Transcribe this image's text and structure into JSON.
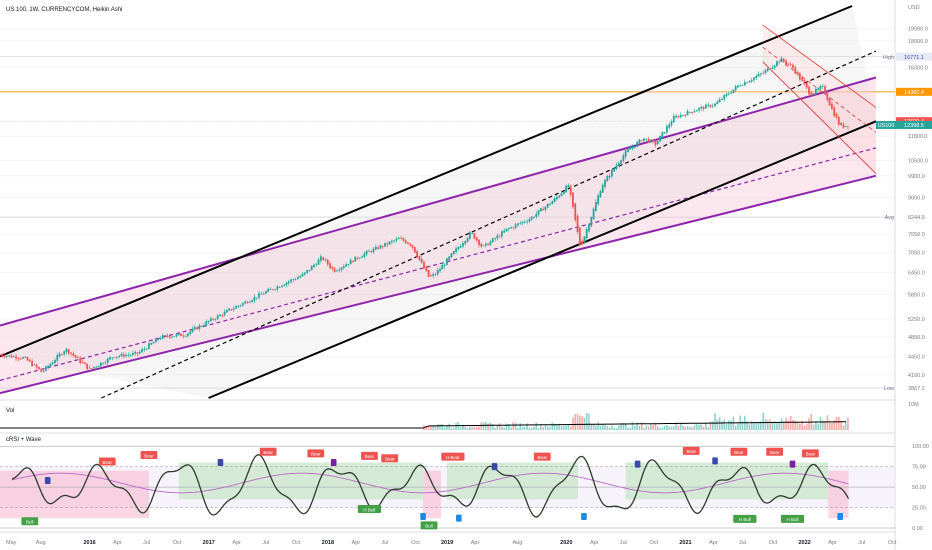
{
  "header": {
    "title": "US 100, 1W, CURRENCYCOM, Heikin Ashi"
  },
  "colors": {
    "purple": "#8e24aa",
    "black": "#000000",
    "red": "#e53935",
    "orange": "#ff9800",
    "up": "#26a69a",
    "down": "#ef5350",
    "green_fill": "#c8e6c9",
    "red_fill": "#f8bbd0"
  },
  "currency": "USD",
  "chart_data": {
    "type": "candlestick",
    "title": "US 100, 1W, CURRENCYCOM, Heikin Ashi",
    "y_scale": "log",
    "ylim": [
      3700,
      21000
    ],
    "price_ticks": [
      "19000.0",
      "18000.0",
      "16000.0",
      "14300.0",
      "12600.0",
      "11800.0",
      "10600.0",
      "9900.0",
      "9000.0",
      "8244.5",
      "7650.0",
      "7050.0",
      "6450.0",
      "5850.0",
      "5250.0",
      "4850.0",
      "4450.0",
      "4100.0",
      "3867.2"
    ],
    "tick_values": [
      19000,
      18000,
      16000,
      14300,
      12600,
      11800,
      10600,
      9900,
      9000,
      8244.5,
      7650,
      7050,
      6450,
      5850,
      5250,
      4850,
      4450,
      4100,
      3867.2
    ],
    "markers": {
      "high": {
        "label": "High",
        "value": "16771.1"
      },
      "avg": {
        "label": "Avg",
        "value": "8244.5"
      },
      "low": {
        "label": "Low",
        "value": "3867.2"
      },
      "orange": {
        "value": "14360.4"
      },
      "red": {
        "value": "12609.4"
      },
      "current": {
        "label": "US100",
        "value": "12398.5"
      }
    },
    "x_labels": [
      "May",
      "Aug",
      "2016",
      "Apr",
      "Jul",
      "Oct",
      "2017",
      "Apr",
      "Jul",
      "Oct",
      "2018",
      "Apr",
      "Jul",
      "Oct",
      "2019",
      "Apr",
      "Aug",
      "2020",
      "Apr",
      "Jul",
      "Oct",
      "2021",
      "Apr",
      "Jul",
      "Oct",
      "2022",
      "Apr",
      "Jul",
      "Oct"
    ],
    "close_path": [
      [
        2015.35,
        4480
      ],
      [
        2015.55,
        4420
      ],
      [
        2015.7,
        4150
      ],
      [
        2015.9,
        4600
      ],
      [
        2016.1,
        4200
      ],
      [
        2016.3,
        4450
      ],
      [
        2016.5,
        4500
      ],
      [
        2016.7,
        4850
      ],
      [
        2016.9,
        4900
      ],
      [
        2017.1,
        5200
      ],
      [
        2017.3,
        5500
      ],
      [
        2017.5,
        5800
      ],
      [
        2017.7,
        6100
      ],
      [
        2017.9,
        6400
      ],
      [
        2018.05,
        6900
      ],
      [
        2018.15,
        6500
      ],
      [
        2018.4,
        7000
      ],
      [
        2018.7,
        7500
      ],
      [
        2018.8,
        7300
      ],
      [
        2018.95,
        6300
      ],
      [
        2019.0,
        6400
      ],
      [
        2019.3,
        7700
      ],
      [
        2019.4,
        7200
      ],
      [
        2019.6,
        7800
      ],
      [
        2019.8,
        8200
      ],
      [
        2020.0,
        8900
      ],
      [
        2020.12,
        9500
      ],
      [
        2020.22,
        7200
      ],
      [
        2020.4,
        9500
      ],
      [
        2020.6,
        11000
      ],
      [
        2020.75,
        11700
      ],
      [
        2020.85,
        11400
      ],
      [
        2021.0,
        12800
      ],
      [
        2021.2,
        13300
      ],
      [
        2021.35,
        13600
      ],
      [
        2021.55,
        14800
      ],
      [
        2021.75,
        15600
      ],
      [
        2021.9,
        16600
      ],
      [
        2022.0,
        16000
      ],
      [
        2022.15,
        14200
      ],
      [
        2022.25,
        14700
      ],
      [
        2022.33,
        13300
      ],
      [
        2022.4,
        12300
      ],
      [
        2022.47,
        12400
      ]
    ],
    "channels": [
      {
        "name": "",
        "color": "#8e24aa",
        "upper": [
          [
            2015.35,
            5100
          ],
          [
            2022.7,
            15300
          ]
        ],
        "mid": [
          [
            2015.35,
            4000
          ],
          [
            2022.7,
            11200
          ]
        ],
        "lower": [
          [
            2015.35,
            3780
          ],
          [
            2022.7,
            9900
          ]
        ]
      },
      {
        "name": "",
        "color": "#000000",
        "upper": [
          [
            2015.35,
            4450
          ],
          [
            2022.5,
            21000
          ]
        ],
        "mid": [
          [
            2016.2,
            3700
          ],
          [
            2022.7,
            17200
          ]
        ],
        "lower": [
          [
            2017.1,
            3700
          ],
          [
            2022.7,
            12600
          ]
        ]
      },
      {
        "name": "",
        "color": "#e53935",
        "upper": [
          [
            2021.75,
            19300
          ],
          [
            2022.7,
            13400
          ]
        ],
        "mid": [
          [
            2021.75,
            17500
          ],
          [
            2022.7,
            12000
          ]
        ],
        "lower": [
          [
            2021.75,
            16400
          ],
          [
            2022.7,
            10000
          ]
        ]
      }
    ],
    "volume": {
      "label": "Vol",
      "axis_label": "10M"
    },
    "oscillator": {
      "label": "cRSI + Wave",
      "ylim": [
        0,
        110
      ],
      "levels": [
        "100.00",
        "75.00",
        "50.00",
        "25.00",
        "0.00"
      ],
      "level_values": [
        100,
        75,
        50,
        25,
        0
      ],
      "signals": [
        {
          "text": "Bear",
          "x": 2016.25,
          "y": 80
        },
        {
          "text": "Bear",
          "x": 2016.6,
          "y": 88
        },
        {
          "text": "Bear",
          "x": 2017.6,
          "y": 92
        },
        {
          "text": "Bear",
          "x": 2018.0,
          "y": 90
        },
        {
          "text": "Bear",
          "x": 2018.45,
          "y": 87
        },
        {
          "text": "Bear",
          "x": 2018.62,
          "y": 84
        },
        {
          "text": "H Bear",
          "x": 2019.15,
          "y": 86
        },
        {
          "text": "Bear",
          "x": 2019.9,
          "y": 86
        },
        {
          "text": "Bear",
          "x": 2021.15,
          "y": 93
        },
        {
          "text": "Bear",
          "x": 2021.55,
          "y": 92
        },
        {
          "text": "Bear",
          "x": 2021.85,
          "y": 92
        },
        {
          "text": "Bear",
          "x": 2022.15,
          "y": 90
        },
        {
          "text": "Bull",
          "x": 2015.6,
          "y": 7
        },
        {
          "text": "Bull",
          "x": 2018.95,
          "y": 2
        },
        {
          "text": "H Bull",
          "x": 2021.6,
          "y": 10
        },
        {
          "text": "H Bull",
          "x": 2022.0,
          "y": 10
        },
        {
          "text": "H Bull",
          "x": 2018.45,
          "y": 22
        }
      ]
    }
  }
}
